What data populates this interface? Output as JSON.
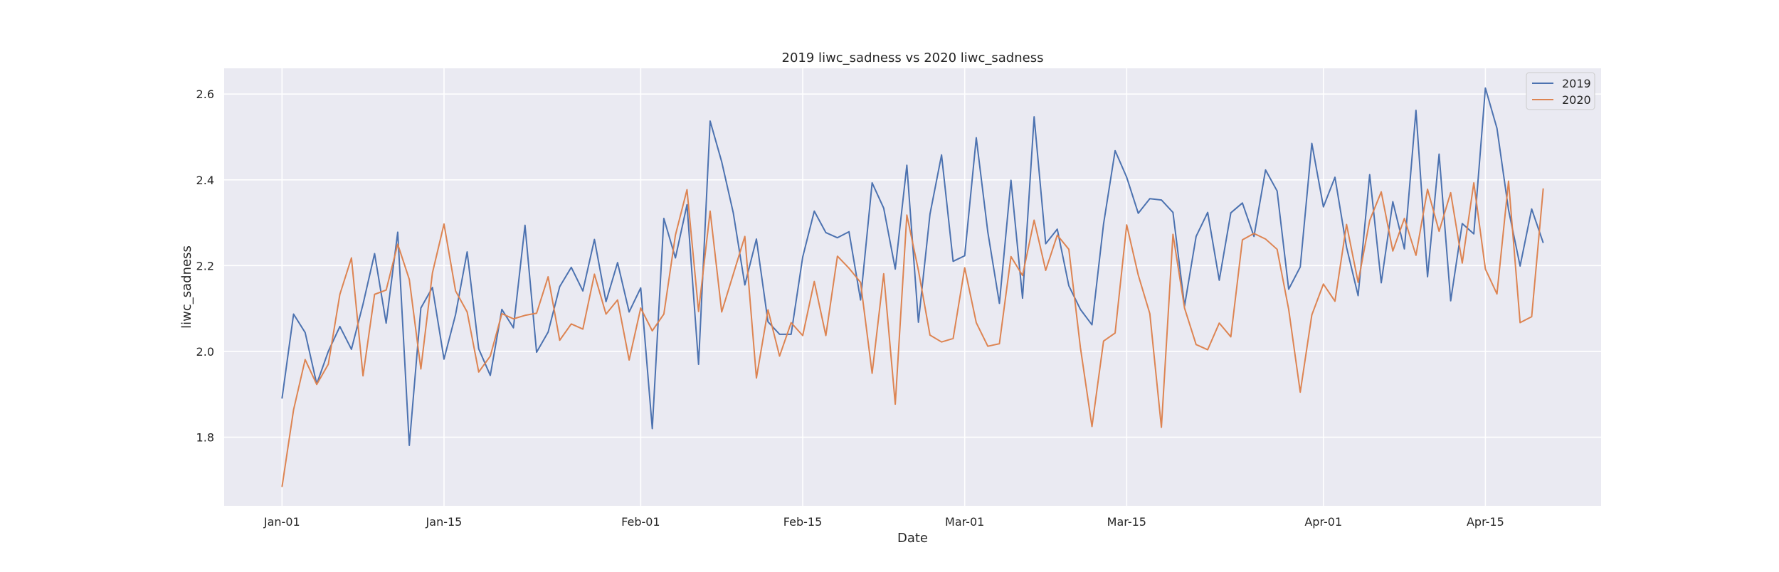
{
  "chart_data": {
    "type": "line",
    "title": "2019 liwc_sadness vs 2020 liwc_sadness",
    "xlabel": "Date",
    "ylabel": "liwc_sadness",
    "x_start": "Jan-01",
    "x_ticks": [
      "Jan-01",
      "Jan-15",
      "Feb-01",
      "Feb-15",
      "Mar-01",
      "Mar-15",
      "Apr-01",
      "Apr-15"
    ],
    "x_tick_days": [
      0,
      14,
      31,
      45,
      59,
      73,
      90,
      104
    ],
    "xlim_days": [
      -5,
      114
    ],
    "y_ticks": [
      "1.8",
      "2.0",
      "2.2",
      "2.4",
      "2.6"
    ],
    "y_tick_values": [
      1.8,
      2.0,
      2.2,
      2.4,
      2.6
    ],
    "ylim": [
      1.64,
      2.66
    ],
    "grid": true,
    "legend_position": "top-right",
    "colors": {
      "background": "#eaeaf2",
      "grid": "#ffffff",
      "series_2019": "#4c72b0",
      "series_2020": "#dd8452"
    },
    "series": [
      {
        "name": "2019",
        "values": [
          1.89,
          2.087,
          2.044,
          1.924,
          2.0,
          2.058,
          2.005,
          2.11,
          2.228,
          2.066,
          2.278,
          1.781,
          2.101,
          2.149,
          1.982,
          2.086,
          2.232,
          2.006,
          1.944,
          2.098,
          2.055,
          2.294,
          1.998,
          2.045,
          2.151,
          2.196,
          2.141,
          2.261,
          2.116,
          2.207,
          2.092,
          2.148,
          1.82,
          2.31,
          2.218,
          2.342,
          1.97,
          2.537,
          2.442,
          2.323,
          2.155,
          2.262,
          2.069,
          2.04,
          2.04,
          2.22,
          2.327,
          2.277,
          2.265,
          2.279,
          2.12,
          2.393,
          2.334,
          2.192,
          2.434,
          2.068,
          2.32,
          2.458,
          2.21,
          2.223,
          2.498,
          2.278,
          2.112,
          2.399,
          2.124,
          2.547,
          2.251,
          2.285,
          2.153,
          2.098,
          2.062,
          2.297,
          2.468,
          2.406,
          2.322,
          2.356,
          2.353,
          2.324,
          2.106,
          2.268,
          2.324,
          2.166,
          2.323,
          2.346,
          2.268,
          2.423,
          2.374,
          2.145,
          2.197,
          2.485,
          2.337,
          2.406,
          2.243,
          2.13,
          2.412,
          2.16,
          2.349,
          2.239,
          2.562,
          2.174,
          2.46,
          2.118,
          2.298,
          2.274,
          2.614,
          2.52,
          2.33,
          2.199,
          2.332,
          2.253
        ]
      },
      {
        "name": "2020",
        "values": [
          1.684,
          1.864,
          1.981,
          1.923,
          1.97,
          2.133,
          2.218,
          1.943,
          2.133,
          2.143,
          2.25,
          2.168,
          1.959,
          2.183,
          2.297,
          2.141,
          2.092,
          1.952,
          1.989,
          2.088,
          2.076,
          2.084,
          2.089,
          2.174,
          2.026,
          2.064,
          2.052,
          2.18,
          2.087,
          2.12,
          1.98,
          2.101,
          2.048,
          2.087,
          2.271,
          2.377,
          2.093,
          2.327,
          2.092,
          2.18,
          2.268,
          1.938,
          2.097,
          1.989,
          2.067,
          2.037,
          2.163,
          2.037,
          2.222,
          2.194,
          2.161,
          1.949,
          2.181,
          1.877,
          2.318,
          2.189,
          2.038,
          2.022,
          2.03,
          2.195,
          2.067,
          2.012,
          2.018,
          2.221,
          2.177,
          2.306,
          2.189,
          2.271,
          2.238,
          2.009,
          1.825,
          2.024,
          2.043,
          2.295,
          2.178,
          2.088,
          1.823,
          2.273,
          2.101,
          2.016,
          2.004,
          2.066,
          2.034,
          2.26,
          2.275,
          2.262,
          2.238,
          2.098,
          1.905,
          2.085,
          2.157,
          2.117,
          2.296,
          2.161,
          2.305,
          2.372,
          2.234,
          2.31,
          2.224,
          2.378,
          2.28,
          2.37,
          2.206,
          2.393,
          2.192,
          2.134,
          2.397,
          2.067,
          2.081,
          2.38
        ]
      }
    ]
  }
}
